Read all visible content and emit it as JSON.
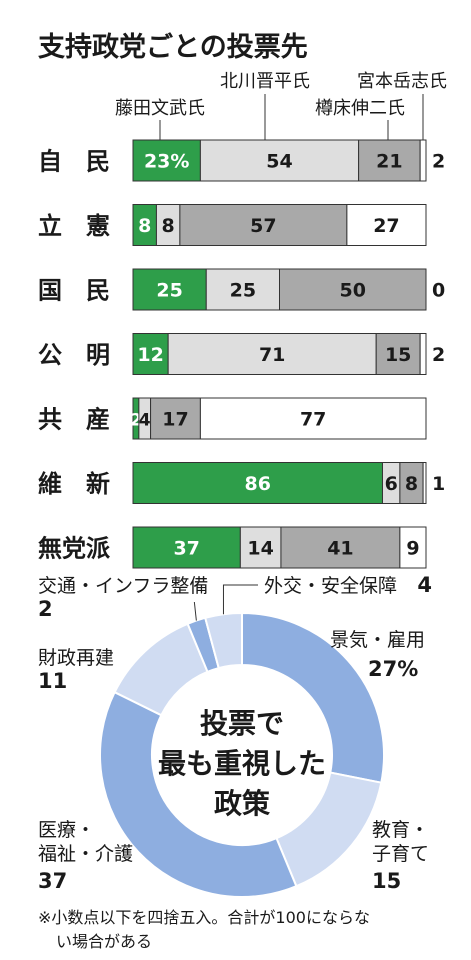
{
  "title": "支持政党ごとの投票先",
  "colors": {
    "fujita": "#2e9e4a",
    "kitagawa": "#dedede",
    "tarumi": "#a9a9a9",
    "miyamoto": "#ffffff",
    "border": "#333333",
    "donut_dark": "#8eaee0",
    "donut_light": "#d0dcf2"
  },
  "chart_data": [
    {
      "type": "bar",
      "stacked": true,
      "orientation": "horizontal",
      "title": "支持政党ごとの投票先",
      "series_labels": {
        "fujita": "藤田文武氏",
        "kitagawa": "北川晋平氏",
        "tarumi": "樽床伸二氏",
        "miyamoto": "宮本岳志氏"
      },
      "first_value_suffix": "%",
      "rows": [
        {
          "party": "自　民",
          "values": [
            23,
            54,
            21,
            2
          ]
        },
        {
          "party": "立　憲",
          "values": [
            8,
            8,
            57,
            27
          ]
        },
        {
          "party": "国　民",
          "values": [
            25,
            25,
            50,
            0
          ]
        },
        {
          "party": "公　明",
          "values": [
            12,
            71,
            15,
            2
          ]
        },
        {
          "party": "共　産",
          "values": [
            2,
            4,
            17,
            77
          ]
        },
        {
          "party": "維　新",
          "values": [
            86,
            6,
            8,
            1
          ]
        },
        {
          "party": "無党派",
          "values": [
            37,
            14,
            41,
            9
          ]
        }
      ]
    },
    {
      "type": "pie",
      "donut": true,
      "center_title": [
        "投票で",
        "最も重視した",
        "政策"
      ],
      "unit_shown_on_first": "%",
      "slices": [
        {
          "label": [
            "景気・雇用"
          ],
          "value": 27,
          "display": "27%"
        },
        {
          "label": [
            "教育・",
            "子育て"
          ],
          "value": 15,
          "display": "15"
        },
        {
          "label": [
            "医療・",
            "福祉・介護"
          ],
          "value": 37,
          "display": "37"
        },
        {
          "label": [
            "財政再建"
          ],
          "value": 11,
          "display": "11"
        },
        {
          "label": [
            "交通・インフラ整備"
          ],
          "value": 2,
          "display": "2"
        },
        {
          "label": [
            "外交・安全保障"
          ],
          "value": 4,
          "display": "4"
        }
      ]
    }
  ],
  "footnote": [
    "※小数点以下を四捨五入。合計が100にならな",
    "い場合がある"
  ]
}
